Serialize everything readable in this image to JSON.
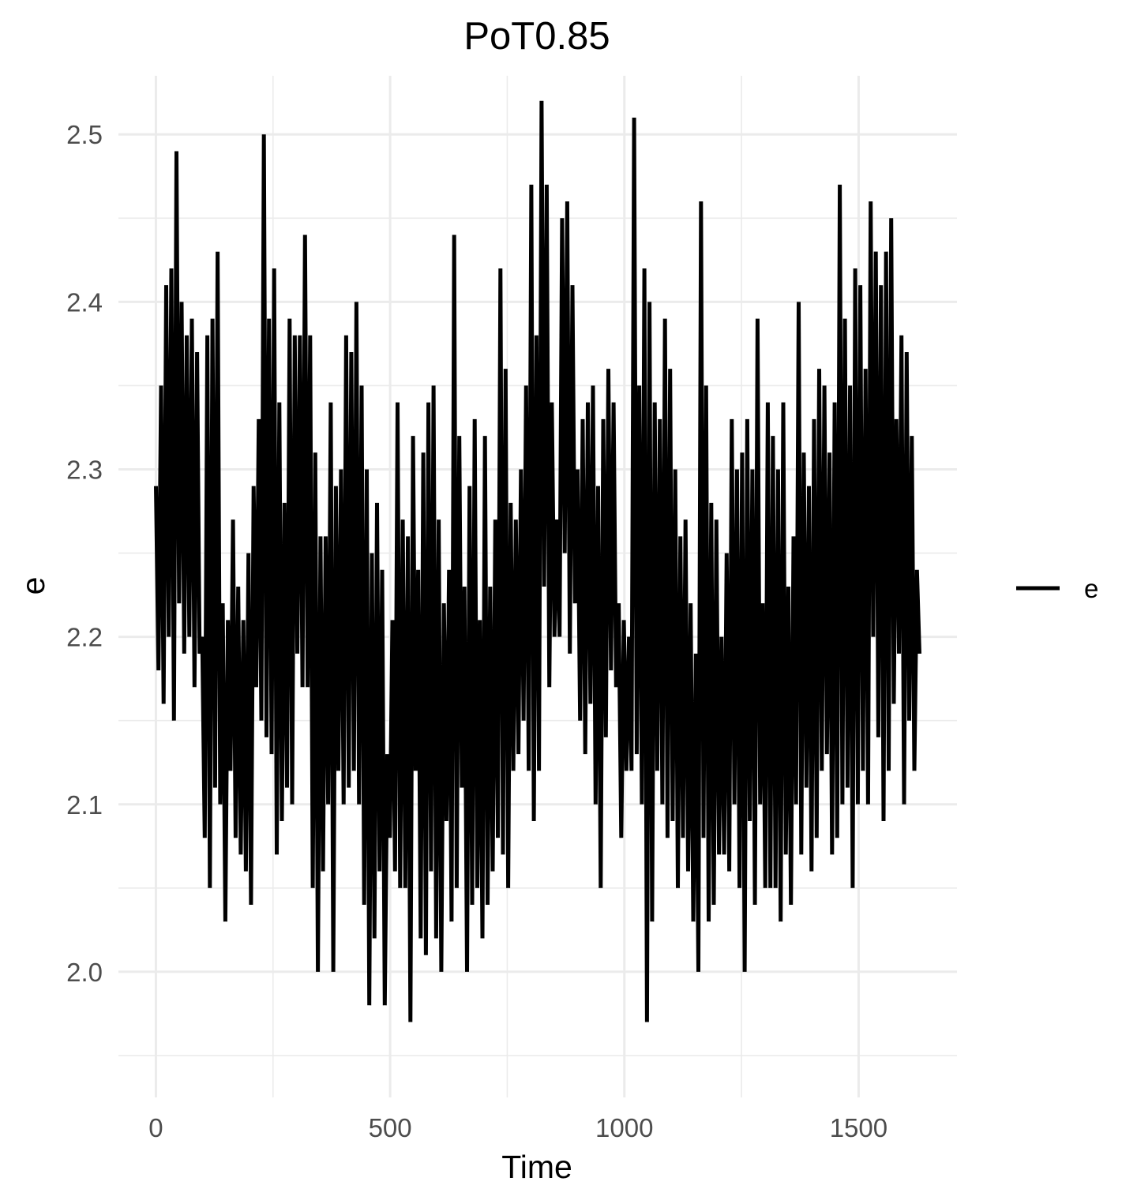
{
  "chart_data": {
    "type": "line",
    "title": "PoT0.85",
    "xlabel": "Time",
    "ylabel": "e",
    "xlim": [
      -80,
      1710
    ],
    "ylim": [
      1.925,
      2.535
    ],
    "x_ticks": [
      0,
      500,
      1000,
      1500
    ],
    "x_tick_labels": [
      "0",
      "500",
      "1000",
      "1500"
    ],
    "y_ticks": [
      2.0,
      2.1,
      2.2,
      2.3,
      2.4,
      2.5
    ],
    "y_tick_labels": [
      "2.0",
      "2.1",
      "2.2",
      "2.3",
      "2.4",
      "2.5"
    ],
    "grid": true,
    "legend": {
      "position": "right",
      "entries": [
        "e"
      ]
    },
    "line_color": "#000000",
    "series": [
      {
        "name": "e",
        "x_start": 0,
        "x_end": 1630,
        "values": [
          2.29,
          2.18,
          2.35,
          2.16,
          2.41,
          2.2,
          2.42,
          2.15,
          2.49,
          2.22,
          2.4,
          2.19,
          2.38,
          2.2,
          2.39,
          2.17,
          2.37,
          2.19,
          2.2,
          2.08,
          2.38,
          2.05,
          2.39,
          2.11,
          2.43,
          2.1,
          2.22,
          2.03,
          2.21,
          2.12,
          2.27,
          2.08,
          2.23,
          2.07,
          2.21,
          2.06,
          2.25,
          2.04,
          2.29,
          2.17,
          2.33,
          2.15,
          2.5,
          2.14,
          2.39,
          2.13,
          2.42,
          2.07,
          2.34,
          2.09,
          2.28,
          2.11,
          2.39,
          2.1,
          2.38,
          2.19,
          2.38,
          2.17,
          2.44,
          2.17,
          2.38,
          2.05,
          2.31,
          2.0,
          2.26,
          2.06,
          2.26,
          2.1,
          2.34,
          2.0,
          2.29,
          2.12,
          2.3,
          2.1,
          2.38,
          2.11,
          2.37,
          2.12,
          2.4,
          2.1,
          2.35,
          2.04,
          2.3,
          1.98,
          2.25,
          2.02,
          2.28,
          2.06,
          2.24,
          1.98,
          2.13,
          2.08,
          2.21,
          2.06,
          2.34,
          2.05,
          2.27,
          2.05,
          2.26,
          1.97,
          2.32,
          2.12,
          2.24,
          2.02,
          2.31,
          2.01,
          2.34,
          2.06,
          2.35,
          2.02,
          2.27,
          2.0,
          2.22,
          2.09,
          2.24,
          2.03,
          2.44,
          2.05,
          2.32,
          2.11,
          2.23,
          2.0,
          2.29,
          2.04,
          2.33,
          2.05,
          2.21,
          2.02,
          2.32,
          2.04,
          2.23,
          2.06,
          2.27,
          2.08,
          2.42,
          2.07,
          2.36,
          2.05,
          2.28,
          2.12,
          2.27,
          2.13,
          2.3,
          2.15,
          2.35,
          2.12,
          2.47,
          2.09,
          2.38,
          2.12,
          2.52,
          2.23,
          2.47,
          2.17,
          2.34,
          2.2,
          2.27,
          2.2,
          2.45,
          2.25,
          2.46,
          2.19,
          2.41,
          2.22,
          2.3,
          2.15,
          2.33,
          2.13,
          2.34,
          2.16,
          2.35,
          2.1,
          2.29,
          2.05,
          2.33,
          2.14,
          2.36,
          2.18,
          2.34,
          2.17,
          2.22,
          2.08,
          2.21,
          2.12,
          2.2,
          2.12,
          2.51,
          2.13,
          2.35,
          2.1,
          2.42,
          1.97,
          2.4,
          2.03,
          2.34,
          2.12,
          2.33,
          2.1,
          2.39,
          2.08,
          2.36,
          2.09,
          2.3,
          2.05,
          2.26,
          2.08,
          2.27,
          2.06,
          2.22,
          2.03,
          2.19,
          2.0,
          2.46,
          2.08,
          2.35,
          2.03,
          2.28,
          2.04,
          2.27,
          2.07,
          2.2,
          2.07,
          2.25,
          2.06,
          2.33,
          2.1,
          2.3,
          2.05,
          2.31,
          2.0,
          2.33,
          2.09,
          2.3,
          2.04,
          2.39,
          2.1,
          2.22,
          2.05,
          2.34,
          2.05,
          2.32,
          2.05,
          2.3,
          2.03,
          2.34,
          2.07,
          2.23,
          2.04,
          2.26,
          2.1,
          2.4,
          2.07,
          2.31,
          2.11,
          2.29,
          2.06,
          2.33,
          2.08,
          2.36,
          2.12,
          2.35,
          2.13,
          2.31,
          2.07,
          2.34,
          2.08,
          2.47,
          2.1,
          2.39,
          2.11,
          2.35,
          2.05,
          2.42,
          2.1,
          2.41,
          2.12,
          2.36,
          2.1,
          2.46,
          2.2,
          2.43,
          2.14,
          2.41,
          2.09,
          2.43,
          2.12,
          2.45,
          2.16,
          2.33,
          2.19,
          2.38,
          2.1,
          2.37,
          2.15,
          2.32,
          2.12,
          2.24,
          2.19
        ]
      }
    ]
  }
}
